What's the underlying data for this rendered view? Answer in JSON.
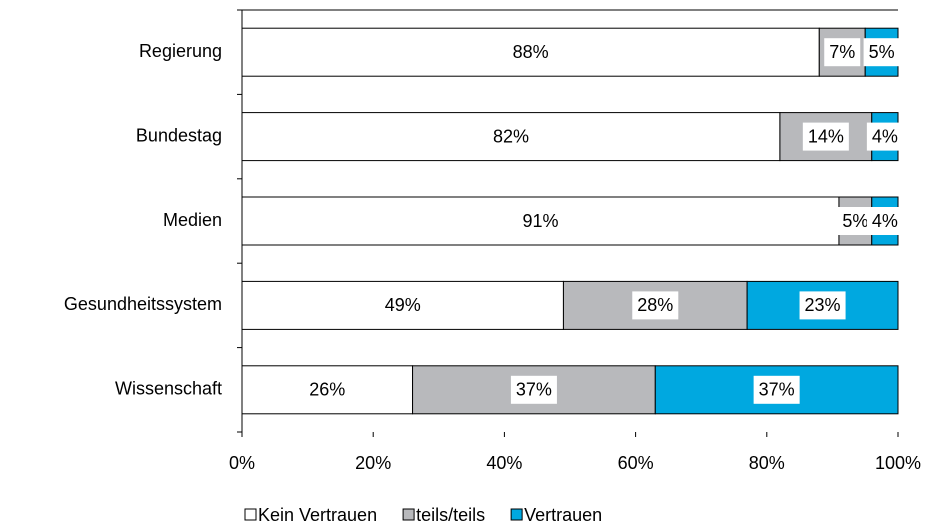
{
  "chart_data": {
    "type": "stacked-barh",
    "categories": [
      "Regierung",
      "Bundestag",
      "Medien",
      "Gesundheitssystem",
      "Wissenschaft"
    ],
    "series": [
      {
        "name": "Kein Vertrauen",
        "color": "#ffffff",
        "values": [
          88,
          82,
          91,
          49,
          26
        ],
        "value_labels": [
          "88%",
          "82%",
          "91%",
          "49%",
          "26%"
        ]
      },
      {
        "name": "teils/teils",
        "color": "#b8b9bc",
        "values": [
          7,
          14,
          5,
          28,
          37
        ],
        "value_labels": [
          "7%",
          "14%",
          "5%",
          "28%",
          "37%"
        ]
      },
      {
        "name": "Vertrauen",
        "color": "#00a8e0",
        "values": [
          5,
          4,
          4,
          23,
          37
        ],
        "value_labels": [
          "5%",
          "4%",
          "4%",
          "23%",
          "37%"
        ]
      }
    ],
    "xlim": [
      0,
      100
    ],
    "xticks": [
      {
        "value": 0,
        "label": "0%"
      },
      {
        "value": 20,
        "label": "20%"
      },
      {
        "value": 40,
        "label": "40%"
      },
      {
        "value": 60,
        "label": "60%"
      },
      {
        "value": 80,
        "label": "80%"
      },
      {
        "value": 100,
        "label": "100%"
      }
    ],
    "legend": "bottom"
  }
}
